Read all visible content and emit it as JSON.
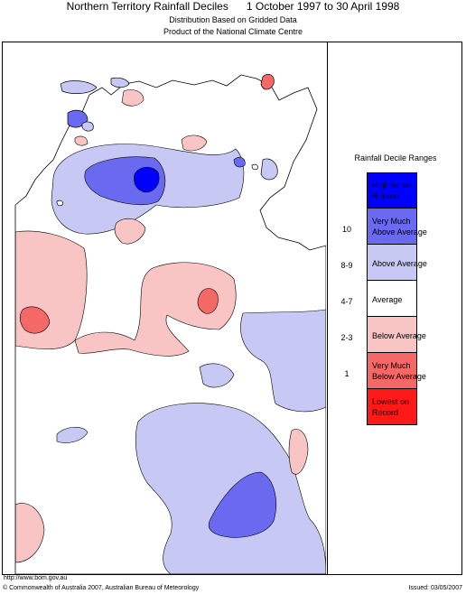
{
  "header": {
    "title_left": "Northern Territory Rainfall Deciles",
    "title_right": "1 October 1997 to 30 April 1998",
    "subtitle_1": "Distribution Based on Gridded Data",
    "subtitle_2": "Product of the National Climate Centre"
  },
  "legend": {
    "title": "Rainfall Decile Ranges",
    "items": [
      {
        "range": "",
        "line1": "Highest on",
        "line2": "Record",
        "color": "#0000ff"
      },
      {
        "range": "10",
        "line1": "Very Much",
        "line2": "Above Average",
        "color": "#6a6af0"
      },
      {
        "range": "8-9",
        "line1": "Above Average",
        "line2": "",
        "color": "#c8c8f4"
      },
      {
        "range": "4-7",
        "line1": "Average",
        "line2": "",
        "color": "#ffffff"
      },
      {
        "range": "2-3",
        "line1": "Below Average",
        "line2": "",
        "color": "#f8c4c4"
      },
      {
        "range": "1",
        "line1": "Very Much",
        "line2": "Below Average",
        "color": "#f46868"
      },
      {
        "range": "",
        "line1": "Lowest on",
        "line2": "Record",
        "color": "#ff1a1a"
      }
    ]
  },
  "footer": {
    "url": "http://www.bom.gov.au",
    "copyright": "© Commonwealth of Australia 2007, Australian Bureau of Meteorology",
    "issued": "Issued: 03/05/2007"
  }
}
